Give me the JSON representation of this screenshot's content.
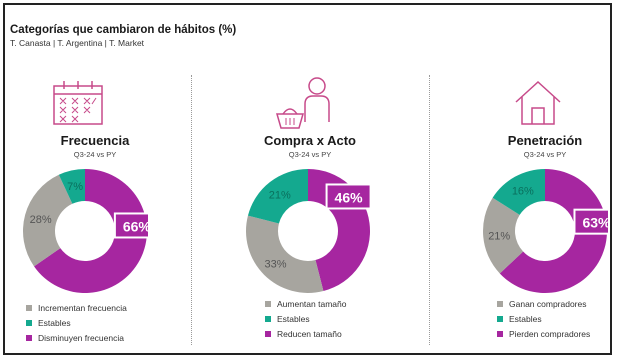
{
  "header": {
    "title": "Categorías que cambiaron de hábitos (%)",
    "subtitle": "T. Canasta | T. Argentina | T. Market"
  },
  "colors": {
    "grey": "#a7a59f",
    "teal": "#14a98f",
    "purple": "#a626a0",
    "icon": "#c74a8a"
  },
  "panels": [
    {
      "icon": "calendar-icon",
      "title": "Frecuencia",
      "period": "Q3-24 vs PY",
      "legend": [
        "Incrementan frecuencia",
        "Estables",
        "Disminuyen frecuencia"
      ]
    },
    {
      "icon": "shopper-basket-icon",
      "title": "Compra x Acto",
      "period": "Q3-24 vs PY",
      "legend": [
        "Aumentan tamaño",
        "Estables",
        "Reducen tamaño"
      ]
    },
    {
      "icon": "house-icon",
      "title": "Penetración",
      "period": "Q3-24 vs PY",
      "legend": [
        "Ganan compradores",
        "Estables",
        "Pierden compradores"
      ]
    }
  ],
  "chart_data": [
    {
      "type": "pie",
      "title": "Frecuencia",
      "series": [
        {
          "values": [
            28,
            7,
            66
          ]
        }
      ],
      "categories": [
        "Incrementan frecuencia",
        "Estables",
        "Disminuyen frecuencia"
      ],
      "labels": [
        "28%",
        "7%",
        "66%"
      ]
    },
    {
      "type": "pie",
      "title": "Compra x Acto",
      "series": [
        {
          "values": [
            33,
            21,
            46
          ]
        }
      ],
      "categories": [
        "Aumentan tamaño",
        "Estables",
        "Reducen tamaño"
      ],
      "labels": [
        "33%",
        "21%",
        "46%"
      ]
    },
    {
      "type": "pie",
      "title": "Penetración",
      "series": [
        {
          "values": [
            21,
            16,
            63
          ]
        }
      ],
      "categories": [
        "Ganan compradores",
        "Estables",
        "Pierden compradores"
      ],
      "labels": [
        "21%",
        "16%",
        "63%"
      ]
    }
  ]
}
